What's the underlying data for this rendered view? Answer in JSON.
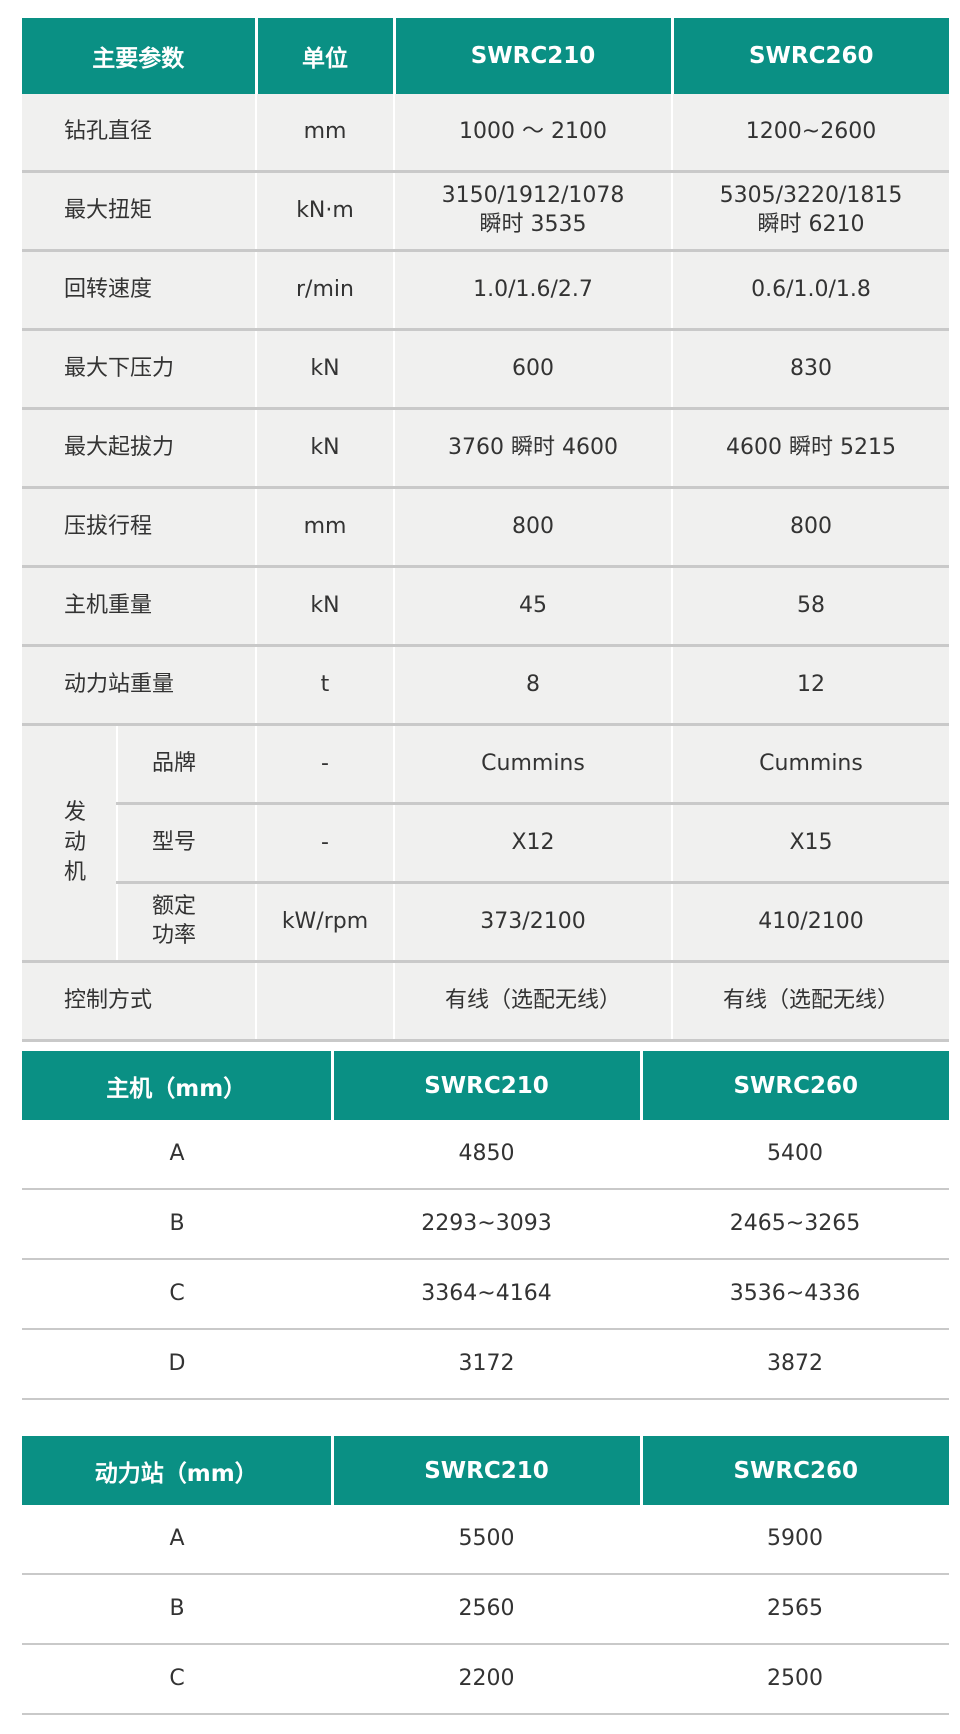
{
  "main_table": {
    "headers": [
      "主要参数",
      "单位",
      "SWRC210",
      "SWRC260"
    ],
    "rows": [
      {
        "param": "钻孔直径",
        "unit": "mm",
        "a": "1000 ～ 2100",
        "b": "1200~2600"
      },
      {
        "param": "最大扭矩",
        "unit": "kN·m",
        "a": "3150/1912/1078",
        "a2": "瞬时 3535",
        "b": "5305/3220/1815",
        "b2": "瞬时 6210"
      },
      {
        "param": "回转速度",
        "unit": "r/min",
        "a": "1.0/1.6/2.7",
        "b": "0.6/1.0/1.8"
      },
      {
        "param": "最大下压力",
        "unit": "kN",
        "a": "600",
        "b": "830"
      },
      {
        "param": "最大起拔力",
        "unit": "kN",
        "a": "3760 瞬时 4600",
        "b": "4600 瞬时 5215"
      },
      {
        "param": "压拔行程",
        "unit": "mm",
        "a": "800",
        "b": "800"
      },
      {
        "param": "主机重量",
        "unit": "kN",
        "a": "45",
        "b": "58"
      },
      {
        "param": "动力站重量",
        "unit": "t",
        "a": "8",
        "b": "12"
      }
    ],
    "engine": {
      "group": [
        "发",
        "动",
        "机"
      ],
      "rows": [
        {
          "param": "品牌",
          "unit": "-",
          "a": "Cummins",
          "b": "Cummins"
        },
        {
          "param": "型号",
          "unit": "-",
          "a": "X12",
          "b": "X15"
        },
        {
          "param": "额定",
          "param2": "功率",
          "unit": "kW/rpm",
          "a": "373/2100",
          "b": "410/2100"
        }
      ]
    },
    "control": {
      "param": "控制方式",
      "unit": "",
      "a": "有线（选配无线）",
      "b": "有线（选配无线）"
    }
  },
  "host_table": {
    "headers": [
      "主机（mm）",
      "SWRC210",
      "SWRC260"
    ],
    "rows": [
      [
        "A",
        "4850",
        "5400"
      ],
      [
        "B",
        "2293~3093",
        "2465~3265"
      ],
      [
        "C",
        "3364~4164",
        "3536~4336"
      ],
      [
        "D",
        "3172",
        "3872"
      ]
    ]
  },
  "power_table": {
    "headers": [
      "动力站（mm）",
      "SWRC210",
      "SWRC260"
    ],
    "rows": [
      [
        "A",
        "5500",
        "5900"
      ],
      [
        "B",
        "2560",
        "2565"
      ],
      [
        "C",
        "2200",
        "2500"
      ]
    ]
  }
}
